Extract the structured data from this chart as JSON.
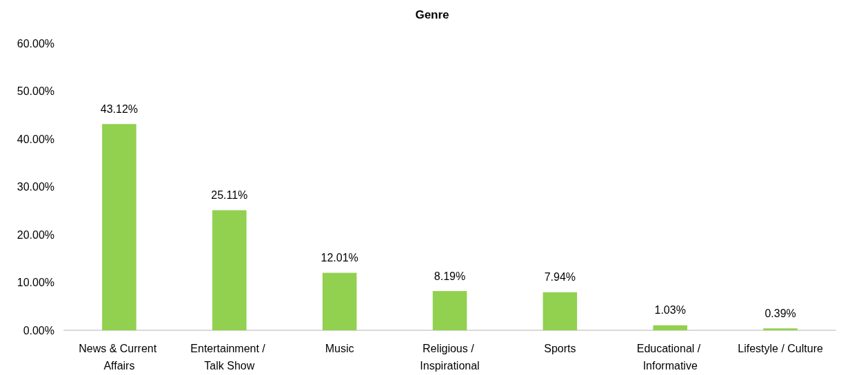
{
  "chart_data": {
    "type": "bar",
    "title": "Genre",
    "categories": [
      "News & Current Affairs",
      "Entertainment / Talk Show",
      "Music",
      "Religious / Inspirational",
      "Sports",
      "Educational / Informative",
      "Lifestyle / Culture"
    ],
    "values": [
      43.12,
      25.11,
      12.01,
      8.19,
      7.94,
      1.03,
      0.39
    ],
    "value_labels": [
      "43.12%",
      "25.11%",
      "12.01%",
      "8.19%",
      "7.94%",
      "1.03%",
      "0.39%"
    ],
    "color": "#92d050",
    "ylim": [
      0,
      60
    ],
    "yticks": [
      {
        "value": 0,
        "label": "0.00%"
      },
      {
        "value": 10,
        "label": "10.00%"
      },
      {
        "value": 20,
        "label": "20.00%"
      },
      {
        "value": 30,
        "label": "30.00%"
      },
      {
        "value": 40,
        "label": "40.00%"
      },
      {
        "value": 50,
        "label": "50.00%"
      },
      {
        "value": 60,
        "label": "60.00%"
      }
    ],
    "grid": false
  }
}
